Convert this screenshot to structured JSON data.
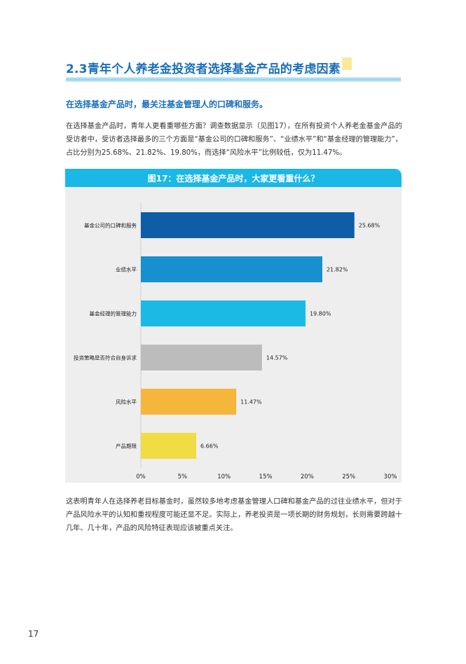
{
  "section": {
    "title": "2.3青年个人养老金投资者选择基金产品的考虑因素",
    "lead": "在选择基金产品时，最关注基金管理人的口碑和服务。",
    "para1": "在选择基金产品时，青年人更看重哪些方面？调查数据显示（见图17），在所有投资个人养老金基金产品的受访者中，受访者选择最多的三个方面是“基金公司的口碑和服务”、“业绩水平”和“基金经理的管理能力”，占比分别为25.68%、21.82%、19.80%，而选择“风险水平”比例较低，仅为11.47%。",
    "para2": "这表明青年人在选择养老目标基金时，虽然较多地考虑基金管理人口碑和基金产品的过往业绩水平，但对于产品风险水平的认知和重视程度可能还显不足。实际上，养老投资是一项长期的财务规划，长则需要跨越十几年、几十年，产品的风险特征表现应该被重点关注。",
    "page_number": "17"
  },
  "chart_data": {
    "type": "bar",
    "orientation": "horizontal",
    "title": "图17：在选择基金产品时，大家更看重什么？",
    "categories": [
      "基金公司的口碑和服务",
      "业绩水平",
      "基金经理的管理能力",
      "投资策略是否符合自身诉求",
      "风险水平",
      "产品期限"
    ],
    "values": [
      25.68,
      21.82,
      19.8,
      14.57,
      11.47,
      6.66
    ],
    "value_labels": [
      "25.68%",
      "21.82%",
      "19.80%",
      "14.57%",
      "11.47%",
      "6.66%"
    ],
    "colors": [
      "#0d5ea6",
      "#1690cf",
      "#1ab9e6",
      "#bcbcbc",
      "#f5b63c",
      "#f0dc43"
    ],
    "xlim": [
      0,
      30
    ],
    "xticks": [
      "0%",
      "5%",
      "10%",
      "15%",
      "20%",
      "25%",
      "30%"
    ],
    "grid": false
  }
}
